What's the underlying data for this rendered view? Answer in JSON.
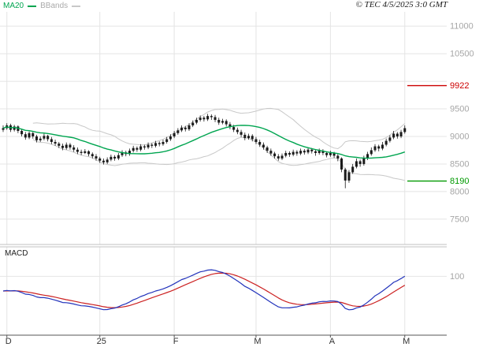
{
  "header": {
    "ma20_label": "MA20",
    "bbands_label": "BBands",
    "copyright": "© TEC 4/5/2025 3:0 GMT"
  },
  "colors": {
    "ma20": "#00a550",
    "bbands": "#c8c8c8",
    "candle": "#1a1a1a",
    "grid": "#e4e4e4",
    "axis_text": "#a6a6a6",
    "month_text": "#333333",
    "resistance": "#cc0000",
    "support": "#009900",
    "macd_line": "#2233bb",
    "macd_signal": "#cc2222",
    "separator": "#c0c0c0",
    "axis_line": "#555555"
  },
  "chart_data": [
    {
      "type": "candlestick",
      "panel": "price",
      "ylim": [
        7040,
        11260
      ],
      "yticks": [
        {
          "v": 11000,
          "t": "11000"
        },
        {
          "v": 10500,
          "t": "10500"
        },
        {
          "v": 10000,
          "t": ""
        },
        {
          "v": 9500,
          "t": "9500"
        },
        {
          "v": 9000,
          "t": "9000"
        },
        {
          "v": 8500,
          "t": "8500"
        },
        {
          "v": 8000,
          "t": "8000"
        },
        {
          "v": 7500,
          "t": "7500"
        }
      ],
      "months": [
        {
          "t": "D",
          "i": 1
        },
        {
          "t": "25",
          "i": 26
        },
        {
          "t": "F",
          "i": 46
        },
        {
          "t": "M",
          "i": 68
        },
        {
          "t": "A",
          "i": 88
        },
        {
          "t": "M",
          "i": 108
        }
      ],
      "levels": [
        {
          "name": "resistance-level",
          "v": 9922,
          "label": "9922",
          "color": "#cc0000"
        },
        {
          "name": "support-level",
          "v": 8190,
          "label": "8190",
          "color": "#009900"
        }
      ],
      "overlays": {
        "ma_period": 20,
        "bollinger_period": 20,
        "bollinger_mult": 2
      },
      "candles": [
        [
          9120,
          9200,
          9080,
          9150
        ],
        [
          9150,
          9240,
          9120,
          9200
        ],
        [
          9200,
          9230,
          9080,
          9120
        ],
        [
          9120,
          9210,
          9090,
          9180
        ],
        [
          9180,
          9200,
          9060,
          9100
        ],
        [
          9100,
          9140,
          9000,
          9040
        ],
        [
          9040,
          9080,
          8940,
          8980
        ],
        [
          8980,
          9090,
          8950,
          9060
        ],
        [
          9060,
          9080,
          8960,
          9000
        ],
        [
          9000,
          9030,
          8890,
          8930
        ],
        [
          8930,
          9000,
          8900,
          8960
        ],
        [
          8960,
          9050,
          8930,
          9010
        ],
        [
          9010,
          9030,
          8910,
          8950
        ],
        [
          8950,
          8990,
          8860,
          8900
        ],
        [
          8900,
          8940,
          8830,
          8870
        ],
        [
          8870,
          8900,
          8790,
          8830
        ],
        [
          8830,
          8870,
          8750,
          8790
        ],
        [
          8790,
          8890,
          8760,
          8850
        ],
        [
          8850,
          8880,
          8760,
          8800
        ],
        [
          8800,
          8840,
          8720,
          8760
        ],
        [
          8760,
          8800,
          8680,
          8720
        ],
        [
          8720,
          8760,
          8660,
          8700
        ],
        [
          8700,
          8770,
          8680,
          8730
        ],
        [
          8730,
          8750,
          8640,
          8680
        ],
        [
          8680,
          8710,
          8600,
          8640
        ],
        [
          8640,
          8680,
          8560,
          8600
        ],
        [
          8600,
          8630,
          8520,
          8560
        ],
        [
          8560,
          8600,
          8490,
          8530
        ],
        [
          8530,
          8620,
          8500,
          8580
        ],
        [
          8580,
          8670,
          8550,
          8630
        ],
        [
          8630,
          8660,
          8560,
          8600
        ],
        [
          8600,
          8700,
          8570,
          8660
        ],
        [
          8660,
          8750,
          8630,
          8710
        ],
        [
          8710,
          8740,
          8640,
          8680
        ],
        [
          8680,
          8780,
          8650,
          8740
        ],
        [
          8740,
          8830,
          8710,
          8790
        ],
        [
          8790,
          8820,
          8720,
          8760
        ],
        [
          8760,
          8860,
          8730,
          8820
        ],
        [
          8820,
          8850,
          8760,
          8800
        ],
        [
          8800,
          8890,
          8770,
          8850
        ],
        [
          8850,
          8880,
          8790,
          8830
        ],
        [
          8830,
          8920,
          8800,
          8880
        ],
        [
          8880,
          8910,
          8820,
          8860
        ],
        [
          8860,
          8940,
          8830,
          8900
        ],
        [
          8900,
          8990,
          8870,
          8950
        ],
        [
          8950,
          9040,
          8920,
          9000
        ],
        [
          9000,
          9100,
          8970,
          9060
        ],
        [
          9060,
          9150,
          9030,
          9110
        ],
        [
          9110,
          9200,
          9080,
          9160
        ],
        [
          9160,
          9190,
          9090,
          9130
        ],
        [
          9130,
          9240,
          9100,
          9200
        ],
        [
          9200,
          9290,
          9170,
          9250
        ],
        [
          9250,
          9340,
          9220,
          9300
        ],
        [
          9300,
          9380,
          9270,
          9340
        ],
        [
          9340,
          9370,
          9270,
          9310
        ],
        [
          9310,
          9410,
          9280,
          9370
        ],
        [
          9370,
          9400,
          9300,
          9350
        ],
        [
          9350,
          9390,
          9260,
          9300
        ],
        [
          9300,
          9340,
          9210,
          9250
        ],
        [
          9250,
          9320,
          9220,
          9280
        ],
        [
          9280,
          9310,
          9180,
          9220
        ],
        [
          9220,
          9260,
          9130,
          9170
        ],
        [
          9170,
          9210,
          9080,
          9120
        ],
        [
          9120,
          9160,
          9040,
          9080
        ],
        [
          9080,
          9120,
          8990,
          9030
        ],
        [
          9030,
          9070,
          8930,
          8970
        ],
        [
          8970,
          9050,
          8940,
          9010
        ],
        [
          9010,
          9040,
          8910,
          8950
        ],
        [
          8950,
          8990,
          8860,
          8900
        ],
        [
          8900,
          8940,
          8810,
          8850
        ],
        [
          8850,
          8890,
          8760,
          8800
        ],
        [
          8800,
          8830,
          8700,
          8740
        ],
        [
          8740,
          8780,
          8650,
          8690
        ],
        [
          8690,
          8720,
          8600,
          8640
        ],
        [
          8640,
          8680,
          8560,
          8600
        ],
        [
          8600,
          8690,
          8570,
          8650
        ],
        [
          8650,
          8740,
          8620,
          8700
        ],
        [
          8700,
          8730,
          8630,
          8670
        ],
        [
          8670,
          8760,
          8640,
          8720
        ],
        [
          8720,
          8750,
          8650,
          8690
        ],
        [
          8690,
          8780,
          8660,
          8740
        ],
        [
          8740,
          8770,
          8670,
          8710
        ],
        [
          8710,
          8800,
          8680,
          8760
        ],
        [
          8760,
          8790,
          8690,
          8730
        ],
        [
          8730,
          8760,
          8650,
          8700
        ],
        [
          8700,
          8780,
          8670,
          8740
        ],
        [
          8740,
          8770,
          8660,
          8700
        ],
        [
          8700,
          8730,
          8620,
          8660
        ],
        [
          8660,
          8740,
          8630,
          8700
        ],
        [
          8700,
          8720,
          8610,
          8650
        ],
        [
          8650,
          8680,
          8550,
          8600
        ],
        [
          8600,
          8620,
          8350,
          8400
        ],
        [
          8400,
          8430,
          8060,
          8200
        ],
        [
          8200,
          8390,
          8160,
          8350
        ],
        [
          8350,
          8500,
          8320,
          8450
        ],
        [
          8450,
          8600,
          8420,
          8550
        ],
        [
          8550,
          8580,
          8450,
          8500
        ],
        [
          8500,
          8650,
          8470,
          8600
        ],
        [
          8600,
          8720,
          8570,
          8680
        ],
        [
          8680,
          8800,
          8650,
          8750
        ],
        [
          8750,
          8860,
          8720,
          8820
        ],
        [
          8820,
          8850,
          8730,
          8780
        ],
        [
          8780,
          8900,
          8750,
          8850
        ],
        [
          8850,
          8960,
          8820,
          8920
        ],
        [
          8920,
          9020,
          8890,
          8980
        ],
        [
          8980,
          9100,
          8950,
          9050
        ],
        [
          9050,
          9080,
          8960,
          9000
        ],
        [
          9000,
          9120,
          8970,
          9080
        ],
        [
          9080,
          9200,
          9050,
          9150
        ]
      ]
    },
    {
      "type": "line",
      "title": "MACD",
      "panel": "indicator",
      "ylim": [
        -300,
        300
      ],
      "yticks": [
        {
          "v": 100,
          "t": "100"
        }
      ],
      "params": {
        "fast": 12,
        "slow": 26,
        "signal": 9
      },
      "series": [
        {
          "name": "MACD",
          "color": "#2233bb",
          "derived": "EMA(fast) - EMA(slow) of closes"
        },
        {
          "name": "Signal",
          "color": "#cc2222",
          "derived": "EMA(signal) of MACD"
        }
      ]
    }
  ]
}
